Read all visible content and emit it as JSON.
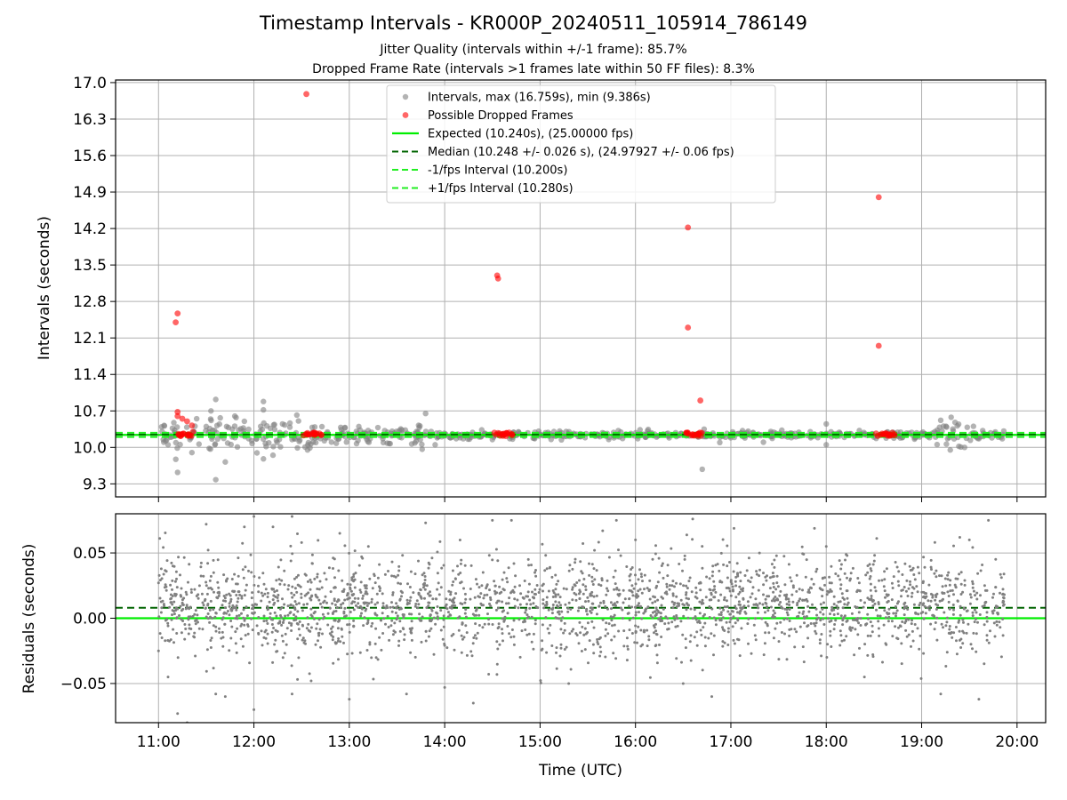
{
  "figure": {
    "title": "Timestamp Intervals - KR000P_20240511_105914_786149",
    "subtitle_1": "Jitter Quality (intervals within +/-1 frame): 85.7%",
    "subtitle_2": "Dropped Frame Rate (intervals >1 frames late within 50 FF files): 8.3%"
  },
  "colors": {
    "intervals": "#808080",
    "dropped": "#ff0000",
    "expected": "#00ee00",
    "median": "#006400",
    "fps_bounds": "#22ee22",
    "grid": "#b0b0b0"
  },
  "chart_data": [
    {
      "type": "scatter",
      "name": "intervals",
      "xlabel": "",
      "ylabel": "Intervals (seconds)",
      "x_unit": "hours UTC",
      "xlim": [
        10.55,
        20.3
      ],
      "ylim": [
        9.05,
        17.05
      ],
      "grid": true,
      "yticks": [
        9.3,
        10.0,
        10.7,
        11.4,
        12.1,
        12.8,
        13.5,
        14.2,
        14.9,
        15.6,
        16.3,
        17.0
      ],
      "ytick_labels": [
        "9.3",
        "10.0",
        "10.7",
        "11.4",
        "12.1",
        "12.8",
        "13.5",
        "14.2",
        "14.9",
        "15.6",
        "16.3",
        "17.0"
      ],
      "legend_position": "top-center",
      "legend": [
        {
          "label": "Intervals, max (16.759s), min (9.386s)",
          "kind": "dot-gray"
        },
        {
          "label": "Possible Dropped Frames",
          "kind": "dot-red"
        },
        {
          "label": "Expected (10.240s), (25.00000 fps)",
          "kind": "line-expected"
        },
        {
          "label": "Median (10.248 +/- 0.026 s), (24.97927 +/- 0.06 fps)",
          "kind": "dash-median"
        },
        {
          "label": "-1/fps Interval (10.200s)",
          "kind": "dash-bound"
        },
        {
          "label": "+1/fps Interval (10.280s)",
          "kind": "dash-bound"
        }
      ],
      "reference_lines": {
        "expected": 10.24,
        "median": 10.248,
        "lower": 10.2,
        "upper": 10.28
      },
      "gray_points_sample": [
        [
          11.05,
          10.15
        ],
        [
          11.1,
          10.05
        ],
        [
          11.2,
          9.52
        ],
        [
          11.35,
          9.9
        ],
        [
          11.4,
          10.55
        ],
        [
          11.5,
          10.4
        ],
        [
          11.55,
          10.7
        ],
        [
          11.6,
          10.92
        ],
        [
          11.6,
          9.38
        ],
        [
          11.7,
          9.72
        ],
        [
          11.8,
          10.6
        ],
        [
          11.9,
          10.5
        ],
        [
          12.1,
          10.88
        ],
        [
          12.1,
          9.78
        ],
        [
          12.1,
          10.72
        ],
        [
          12.2,
          9.85
        ],
        [
          12.3,
          10.45
        ],
        [
          12.4,
          10.15
        ],
        [
          12.45,
          10.62
        ],
        [
          13.1,
          10.4
        ],
        [
          13.3,
          10.38
        ],
        [
          13.8,
          10.65
        ],
        [
          13.9,
          10.05
        ],
        [
          14.5,
          10.15
        ],
        [
          16.7,
          9.58
        ],
        [
          16.72,
          10.35
        ],
        [
          18.0,
          10.45
        ],
        [
          18.0,
          10.05
        ],
        [
          19.2,
          10.52
        ],
        [
          19.3,
          9.95
        ],
        [
          19.35,
          10.48
        ],
        [
          19.45,
          10.0
        ]
      ],
      "dropped_points": [
        [
          11.18,
          12.4
        ],
        [
          11.2,
          12.57
        ],
        [
          11.2,
          10.68
        ],
        [
          11.2,
          10.6
        ],
        [
          11.25,
          10.55
        ],
        [
          11.3,
          10.5
        ],
        [
          11.35,
          10.42
        ],
        [
          11.36,
          10.3
        ],
        [
          11.25,
          10.25
        ],
        [
          12.55,
          16.78
        ],
        [
          12.6,
          10.25
        ],
        [
          12.65,
          10.25
        ],
        [
          14.55,
          13.3
        ],
        [
          14.56,
          13.24
        ],
        [
          14.6,
          10.25
        ],
        [
          14.7,
          10.25
        ],
        [
          16.55,
          14.22
        ],
        [
          16.55,
          12.3
        ],
        [
          16.6,
          10.25
        ],
        [
          16.65,
          10.25
        ],
        [
          16.68,
          10.9
        ],
        [
          18.55,
          14.8
        ],
        [
          18.55,
          11.95
        ],
        [
          18.6,
          10.25
        ],
        [
          18.65,
          10.25
        ]
      ]
    },
    {
      "type": "scatter",
      "name": "residuals",
      "xlabel": "Time (UTC)",
      "ylabel": "Residuals (seconds)",
      "x_unit": "hours UTC",
      "xlim": [
        10.55,
        20.3
      ],
      "ylim": [
        -0.08,
        0.08
      ],
      "grid": true,
      "xticks": [
        11,
        12,
        13,
        14,
        15,
        16,
        17,
        18,
        19,
        20
      ],
      "xtick_labels": [
        "11:00",
        "12:00",
        "13:00",
        "14:00",
        "15:00",
        "16:00",
        "17:00",
        "18:00",
        "19:00",
        "20:00"
      ],
      "yticks": [
        -0.05,
        0.0,
        0.05
      ],
      "ytick_labels": [
        "−0.05",
        "0.00",
        "0.05"
      ],
      "reference_lines": {
        "zero": 0.0,
        "median_offset": 0.008
      },
      "points_sample": [
        [
          11.0,
          -0.025
        ],
        [
          11.1,
          -0.045
        ],
        [
          11.2,
          -0.073
        ],
        [
          11.3,
          -0.08
        ],
        [
          11.5,
          0.072
        ],
        [
          11.6,
          -0.058
        ],
        [
          11.7,
          -0.06
        ],
        [
          11.9,
          0.07
        ],
        [
          12.0,
          -0.07
        ],
        [
          12.0,
          0.078
        ],
        [
          12.2,
          0.07
        ],
        [
          12.4,
          0.078
        ],
        [
          12.4,
          -0.058
        ],
        [
          12.5,
          0.058
        ],
        [
          12.6,
          -0.048
        ],
        [
          12.9,
          0.065
        ],
        [
          13.0,
          -0.062
        ],
        [
          13.2,
          0.055
        ],
        [
          13.6,
          -0.058
        ],
        [
          13.8,
          0.073
        ],
        [
          14.0,
          -0.053
        ],
        [
          14.3,
          -0.065
        ],
        [
          14.5,
          0.075
        ],
        [
          14.7,
          0.075
        ],
        [
          15.3,
          -0.05
        ],
        [
          15.8,
          0.075
        ],
        [
          16.0,
          0.06
        ],
        [
          16.5,
          -0.05
        ],
        [
          16.6,
          0.076
        ],
        [
          16.8,
          -0.06
        ],
        [
          17.3,
          0.05
        ],
        [
          18.0,
          0.055
        ],
        [
          18.4,
          -0.045
        ],
        [
          19.2,
          -0.058
        ],
        [
          19.4,
          0.062
        ],
        [
          19.5,
          0.06
        ],
        [
          19.6,
          -0.062
        ],
        [
          19.7,
          0.075
        ]
      ]
    }
  ]
}
